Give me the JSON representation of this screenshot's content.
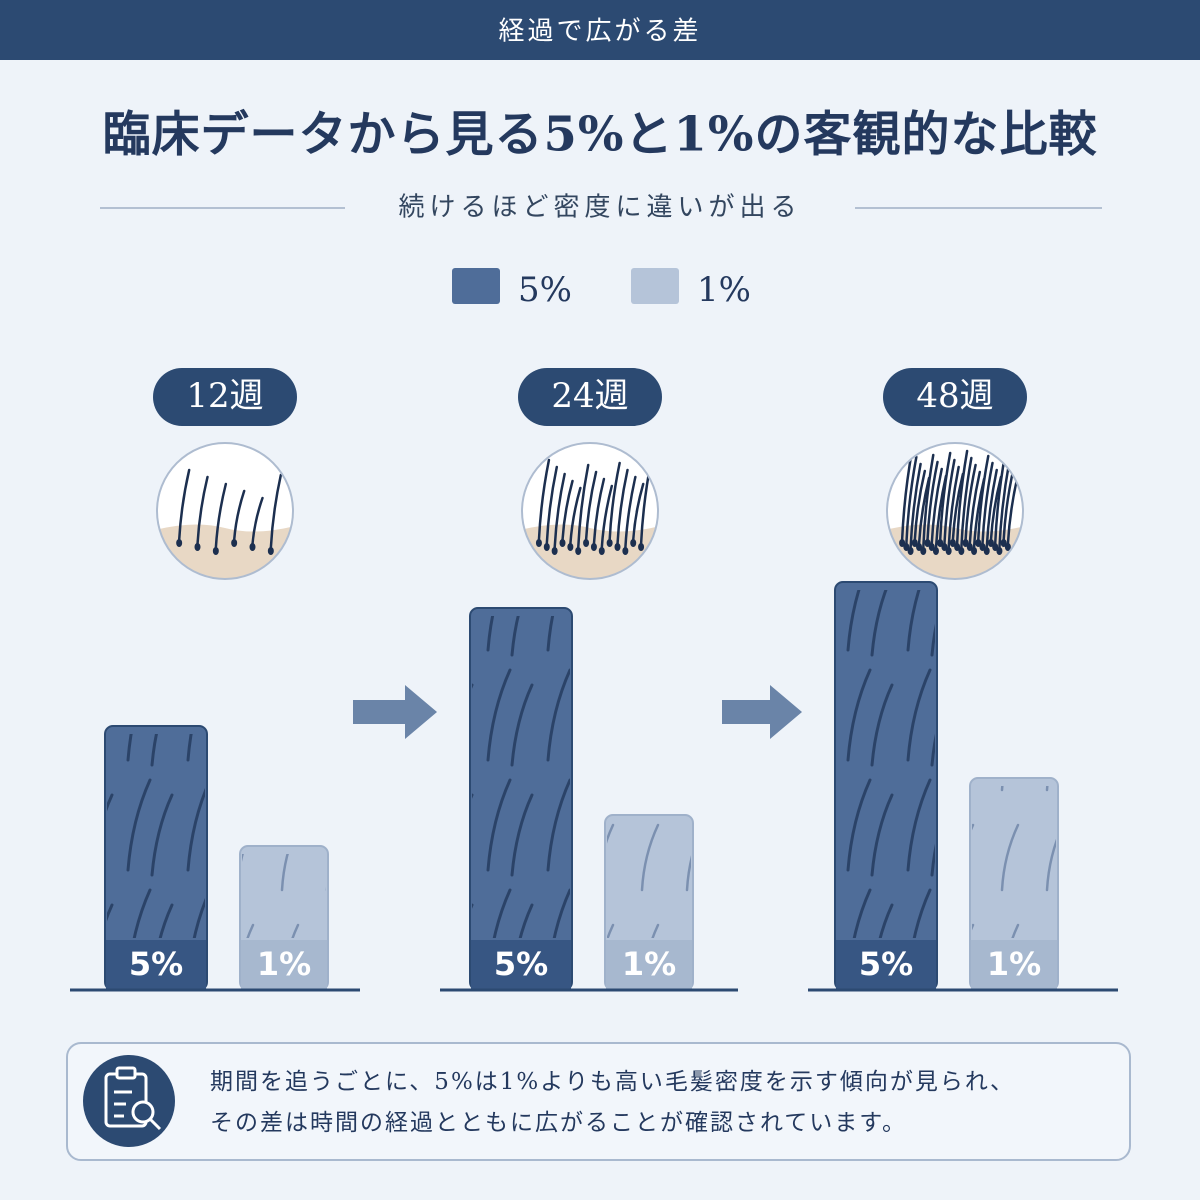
{
  "header": {
    "title": "経過で広がる差"
  },
  "chart_data": {
    "type": "bar",
    "title": "臨床データから見る5%と1%の客観的な比較",
    "subtitle": "続けるほど密度に違いが出る",
    "categories": [
      "12週",
      "24週",
      "48週"
    ],
    "series": [
      {
        "name": "5%",
        "color": "#4f6d99",
        "values": [
          264,
          382,
          408
        ]
      },
      {
        "name": "1%",
        "color": "#b5c4d9",
        "values": [
          144,
          175,
          212
        ]
      }
    ],
    "legend": "top"
  },
  "note": {
    "lines": [
      "期間を追うごとに、5%は1%よりも高い毛髪密度を示す傾向が見られ、",
      "その差は時間の経過とともに広がることが確認されています。"
    ]
  }
}
